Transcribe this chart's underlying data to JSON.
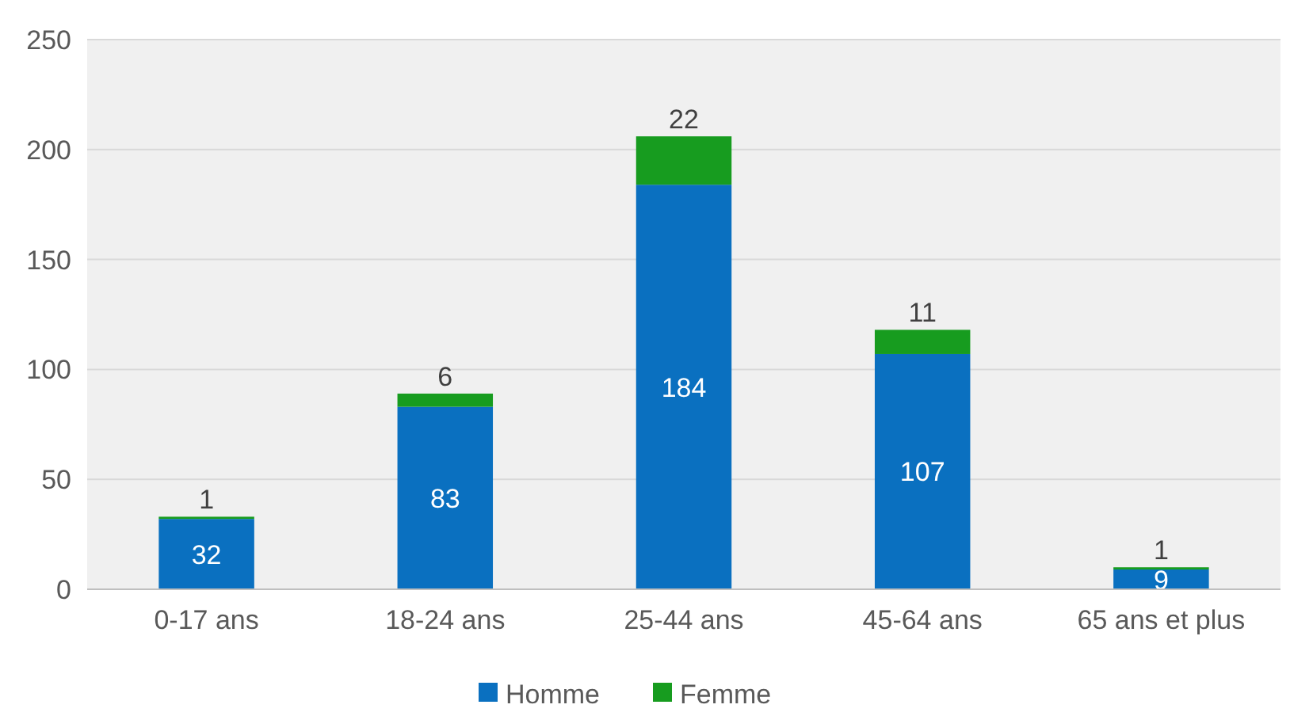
{
  "chart_data": {
    "type": "bar",
    "stacked": true,
    "categories": [
      "0-17 ans",
      "18-24 ans",
      "25-44 ans",
      "45-64 ans",
      "65 ans et plus"
    ],
    "series": [
      {
        "name": "Homme",
        "color": "#0a70c0",
        "values": [
          32,
          83,
          184,
          107,
          9
        ]
      },
      {
        "name": "Femme",
        "color": "#179c1f",
        "values": [
          1,
          6,
          22,
          11,
          1
        ]
      }
    ],
    "ylim": [
      0,
      250
    ],
    "yticks": [
      0,
      50,
      100,
      150,
      200,
      250
    ],
    "grid": "y",
    "legend": "bottom",
    "data_labels": true
  }
}
